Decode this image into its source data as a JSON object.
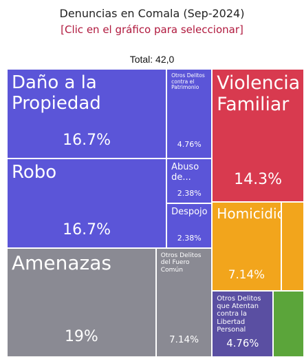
{
  "chart_data": {
    "type": "treemap",
    "title": "Denuncias en Comala (Sep-2024)",
    "subtitle": "[Clic en el gráfico para seleccionar]",
    "total_label": "Total: 42,0",
    "categories": [
      "Daño a la Propiedad",
      "Robo",
      "Amenazas",
      "Otros Delitos del Fuero Común",
      "Otros Delitos contra el Patrimonio",
      "Abuso de...",
      "Despojo",
      "Violencia Familiar",
      "Homicidio",
      null,
      "Otros Delitos que Atentan contra la Libertad Personal",
      null
    ],
    "values": [
      16.7,
      16.7,
      19,
      7.14,
      4.76,
      2.38,
      2.38,
      14.3,
      7.14,
      2.38,
      4.76,
      2.38
    ],
    "value_labels": [
      "16.7%",
      "16.7%",
      "19%",
      "7.14%",
      "4.76%",
      "2.38%",
      "2.38%",
      "14.3%",
      "7.14%",
      null,
      "4.76%",
      null
    ],
    "colors": [
      "#5b55d8",
      "#5b55d8",
      "#8a8a93",
      "#8a8a93",
      "#5b55d8",
      "#5b55d8",
      "#5b55d8",
      "#d83a4f",
      "#f2a51c",
      "#f2a51c",
      "#5a4fa2",
      "#5ba53a"
    ]
  }
}
